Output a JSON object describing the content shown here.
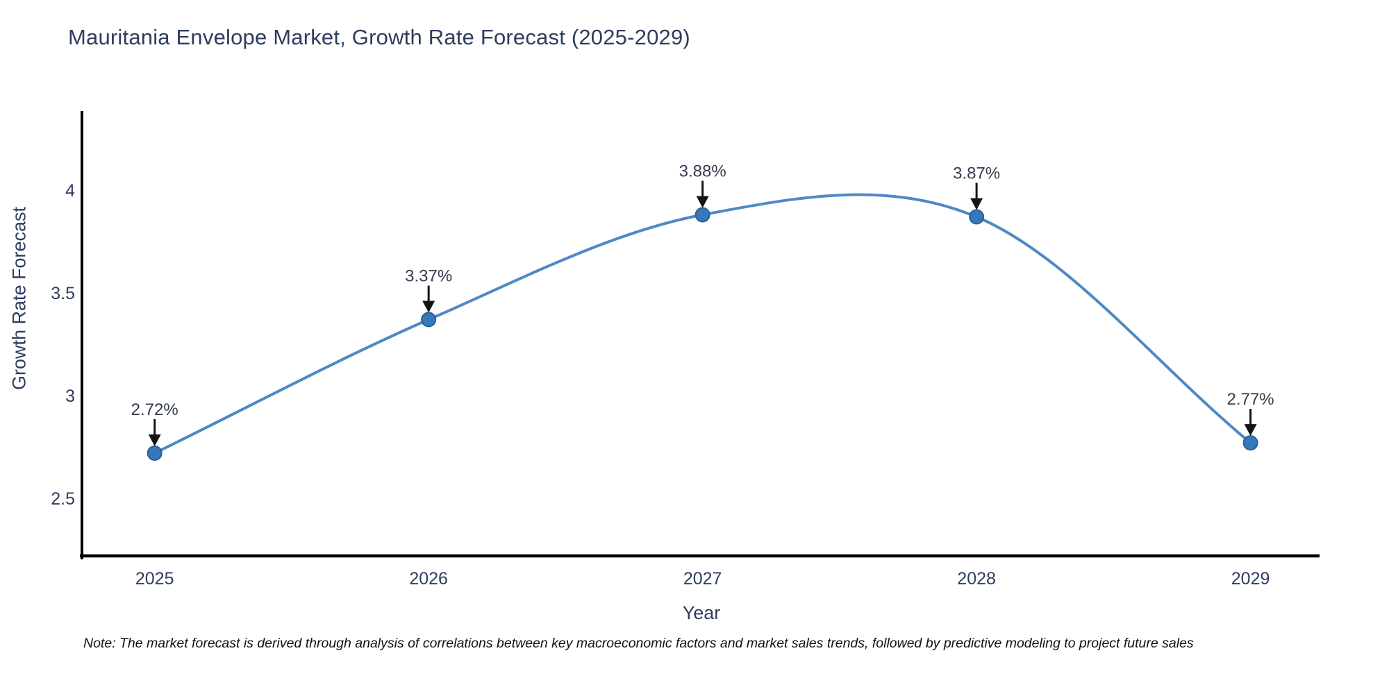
{
  "title": "Mauritania Envelope Market, Growth Rate Forecast (2025-2029)",
  "note": "Note: The market forecast is derived through analysis of correlations between key macroeconomic factors and market sales trends, followed by predictive modeling to project future sales",
  "chart_data": {
    "type": "line",
    "title": "Mauritania Envelope Market, Growth Rate Forecast (2025-2029)",
    "xlabel": "Year",
    "ylabel": "Growth Rate Forecast",
    "x": [
      2025,
      2026,
      2027,
      2028,
      2029
    ],
    "values": [
      2.72,
      3.37,
      3.88,
      3.87,
      2.77
    ],
    "point_labels": [
      "2.72%",
      "3.37%",
      "3.88%",
      "3.87%",
      "2.77%"
    ],
    "xticks": [
      "2025",
      "2026",
      "2027",
      "2028",
      "2029"
    ],
    "yticks": [
      2.5,
      3,
      3.5,
      4
    ],
    "ytick_labels": [
      "2.5",
      "3",
      "3.5",
      "4"
    ],
    "xlim": [
      2024.727,
      2029.252
    ],
    "ylim": [
      2.203,
      4.385
    ],
    "smooth": true,
    "grid": false,
    "legend": null,
    "line_color": "#4f89c4",
    "marker_color": "#3678b9",
    "marker_edge_color": "#2b5f96",
    "annotation_color": "#353c4e",
    "arrow_color": "#141414",
    "axis_color": "#000000"
  }
}
